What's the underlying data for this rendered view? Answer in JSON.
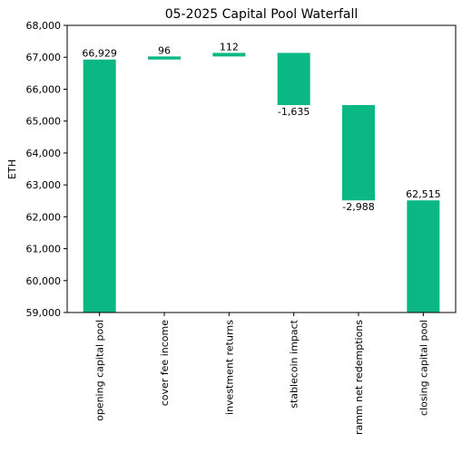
{
  "chart_data": {
    "type": "bar",
    "subtype": "waterfall",
    "title": "05-2025 Capital Pool Waterfall",
    "xlabel": "",
    "ylabel": "ETH",
    "ylim": [
      59000,
      68000
    ],
    "yticks": [
      59000,
      60000,
      61000,
      62000,
      63000,
      64000,
      65000,
      66000,
      67000,
      68000
    ],
    "ytick_labels": [
      "59,000",
      "60,000",
      "61,000",
      "62,000",
      "63,000",
      "64,000",
      "65,000",
      "66,000",
      "67,000",
      "68,000"
    ],
    "grid": false,
    "legend": "none",
    "bar_color": "#0bb884",
    "categories": [
      "opening capital pool",
      "cover fee income",
      "investment returns",
      "stablecoin impact",
      "ramm net redemptions",
      "closing capital pool"
    ],
    "values": [
      66929,
      96,
      112,
      -1635,
      -2988,
      62515
    ],
    "data_labels": [
      "66,929",
      "96",
      "112",
      "-1,635",
      "-2,988",
      "62,515"
    ],
    "bars": [
      {
        "category": "opening capital pool",
        "bottom": 59000,
        "top": 66929
      },
      {
        "category": "cover fee income",
        "bottom": 66929,
        "top": 67025
      },
      {
        "category": "investment returns",
        "bottom": 67025,
        "top": 67137
      },
      {
        "category": "stablecoin impact",
        "bottom": 65502,
        "top": 67137
      },
      {
        "category": "ramm net redemptions",
        "bottom": 62514,
        "top": 65502
      },
      {
        "category": "closing capital pool",
        "bottom": 59000,
        "top": 62515
      }
    ]
  }
}
